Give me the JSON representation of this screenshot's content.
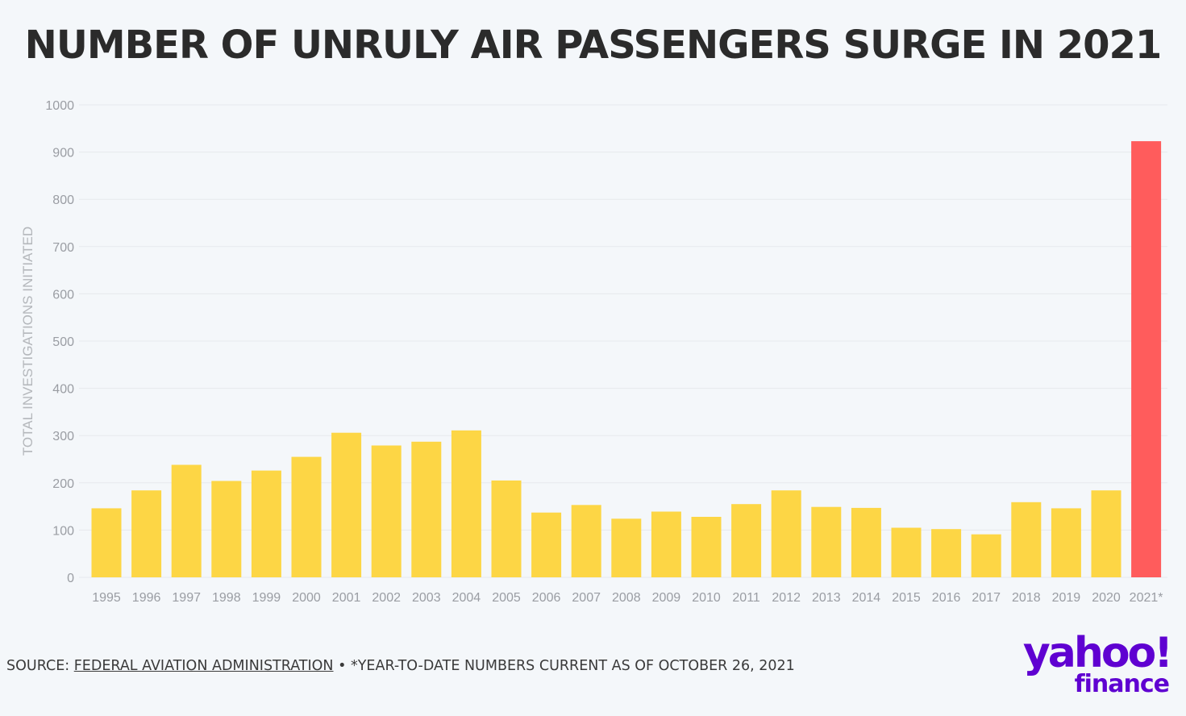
{
  "title": "NUMBER OF UNRULY AIR PASSENGERS SURGE IN 2021",
  "chart_data": {
    "type": "bar",
    "title": "NUMBER OF UNRULY AIR PASSENGERS SURGE IN 2021",
    "xlabel": "",
    "ylabel": "TOTAL INVESTIGATIONS INITIATED",
    "ylim": [
      0,
      1000
    ],
    "yticks": [
      0,
      100,
      200,
      300,
      400,
      500,
      600,
      700,
      800,
      900,
      1000
    ],
    "grid": true,
    "legend": "none",
    "categories": [
      "1995",
      "1996",
      "1997",
      "1998",
      "1999",
      "2000",
      "2001",
      "2002",
      "2003",
      "2004",
      "2005",
      "2006",
      "2007",
      "2008",
      "2009",
      "2010",
      "2011",
      "2012",
      "2013",
      "2014",
      "2015",
      "2016",
      "2017",
      "2018",
      "2019",
      "2020",
      "2021*"
    ],
    "values": [
      146,
      184,
      238,
      204,
      226,
      255,
      306,
      279,
      287,
      311,
      205,
      137,
      153,
      124,
      139,
      128,
      155,
      184,
      149,
      147,
      105,
      102,
      91,
      159,
      146,
      184,
      923
    ],
    "colors": {
      "default": "#fdd645",
      "highlight": "#ff5c5c",
      "highlight_category": "2021*"
    }
  },
  "footer": {
    "source_prefix": "SOURCE: ",
    "source_link": "FEDERAL AVIATION ADMINISTRATION",
    "note": " • *YEAR-TO-DATE NUMBERS CURRENT AS OF OCTOBER 26, 2021"
  },
  "logo": {
    "wordmark": "yahoo!",
    "sub": "finance",
    "color": "#5f01d1"
  }
}
